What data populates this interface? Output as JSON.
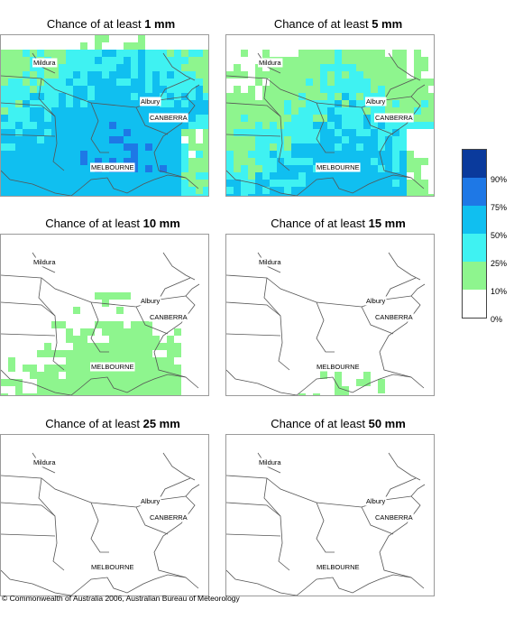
{
  "panels": [
    {
      "prefix": "Chance of at least ",
      "amount": "1 mm",
      "fill": {
        "green": 1,
        "cyan": 0.9,
        "blue": 0.7,
        "dark": 0.3
      }
    },
    {
      "prefix": "Chance of at least ",
      "amount": "5 mm",
      "fill": {
        "green": 0.85,
        "cyan": 0.55,
        "blue": 0.1,
        "dark": 0
      }
    },
    {
      "prefix": "Chance of at least ",
      "amount": "10 mm",
      "fill": {
        "green": 0.5,
        "cyan": 0,
        "blue": 0,
        "dark": 0
      }
    },
    {
      "prefix": "Chance of at least ",
      "amount": "15 mm",
      "fill": {
        "green": 0.25,
        "cyan": 0,
        "blue": 0,
        "dark": 0
      }
    },
    {
      "prefix": "Chance of at least ",
      "amount": "25 mm",
      "fill": {
        "green": 0.02,
        "cyan": 0,
        "blue": 0,
        "dark": 0
      }
    },
    {
      "prefix": "Chance of at least ",
      "amount": "50 mm",
      "fill": {
        "green": 0,
        "cyan": 0,
        "blue": 0,
        "dark": 0
      }
    }
  ],
  "cities": {
    "mildura": "Mildura",
    "canberra": "CANBERRA",
    "albury": "Albury",
    "melbourne": "MELBOURNE"
  },
  "legend": {
    "labels": [
      "90%",
      "75%",
      "50%",
      "25%",
      "10%",
      "0%"
    ],
    "colors": [
      "#0a3a9c",
      "#1e78e6",
      "#10bff0",
      "#3ff2f2",
      "#8ef58e",
      "#ffffff"
    ]
  },
  "copyright": "© Commonwealth of Australia 2006, Australian Bureau of Meteorology"
}
